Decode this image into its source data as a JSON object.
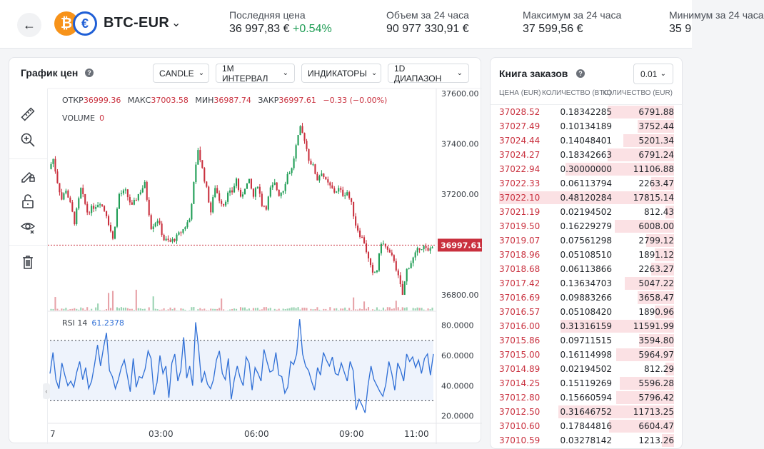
{
  "header": {
    "back_icon": "arrow-left-icon",
    "base_coin_symbol": "₿",
    "quote_coin_symbol": "€",
    "pair": "BTC-EUR",
    "stats": [
      {
        "label": "Последняя цена",
        "value": "36 997,83 €",
        "change": "+0.54%"
      },
      {
        "label": "Объем за 24 часа",
        "value": "90 977 330,91 €"
      },
      {
        "label": "Максимум за 24 часа",
        "value": "37 599,56 €"
      },
      {
        "label": "Минимум за 24 часа",
        "value": "35 9"
      }
    ]
  },
  "chart": {
    "title": "График цен",
    "dropdowns": {
      "type": "CANDLE",
      "interval": "1М ИНТЕРВАЛ",
      "indicators": "ИНДИКАТОРЫ",
      "range": "1D ДИАПАЗОН"
    },
    "ohlc": {
      "open_label": "ОТКР",
      "open": "36999.36",
      "high_label": "МАКС",
      "high": "37003.58",
      "low_label": "МИН",
      "low": "36987.74",
      "close_label": "ЗАКР",
      "close": "36997.61",
      "change": "−0.33 (−0.00%)"
    },
    "volume_label": "VOLUME",
    "volume_value": "0",
    "rsi_label": "RSI 14",
    "rsi_value": "61.2378",
    "current_price_tag": "36997.61",
    "tools": [
      "ruler-icon",
      "zoom-in-icon",
      "pencil-lock-icon",
      "lock-open-icon",
      "eye-icon",
      "trash-icon"
    ]
  },
  "chart_data": [
    {
      "type": "candlestick",
      "x_ticks": [
        "7",
        "03:00",
        "06:00",
        "09:00",
        "11:00"
      ],
      "y_ticks": [
        "37600.00",
        "37400.00",
        "37200.00",
        "36800.00"
      ],
      "ylim": [
        36735,
        37620
      ],
      "current_price": 36997.61,
      "close_path": [
        [
          0,
          37300
        ],
        [
          2,
          37340
        ],
        [
          4,
          37250
        ],
        [
          6,
          37180
        ],
        [
          8,
          37220
        ],
        [
          10,
          37160
        ],
        [
          12,
          37090
        ],
        [
          15,
          37220
        ],
        [
          18,
          37130
        ],
        [
          21,
          37150
        ],
        [
          24,
          37170
        ],
        [
          27,
          37120
        ],
        [
          30,
          37020
        ],
        [
          33,
          37200
        ],
        [
          36,
          37210
        ],
        [
          39,
          37150
        ],
        [
          42,
          37200
        ],
        [
          45,
          37240
        ],
        [
          48,
          37070
        ],
        [
          51,
          37100
        ],
        [
          54,
          37020
        ],
        [
          57,
          37010
        ],
        [
          60,
          37030
        ],
        [
          63,
          37060
        ],
        [
          66,
          37100
        ],
        [
          70,
          37380
        ],
        [
          72,
          37300
        ],
        [
          74,
          37220
        ],
        [
          76,
          37130
        ],
        [
          78,
          37230
        ],
        [
          80,
          37180
        ],
        [
          82,
          37160
        ],
        [
          84,
          37200
        ],
        [
          86,
          37210
        ],
        [
          88,
          37260
        ],
        [
          90,
          37180
        ],
        [
          92,
          37230
        ],
        [
          94,
          37250
        ],
        [
          96,
          37190
        ],
        [
          98,
          37240
        ],
        [
          100,
          37160
        ],
        [
          102,
          37150
        ],
        [
          104,
          37220
        ],
        [
          106,
          37240
        ],
        [
          108,
          37200
        ],
        [
          110,
          37220
        ],
        [
          112,
          37280
        ],
        [
          114,
          37300
        ],
        [
          116,
          37390
        ],
        [
          118,
          37460
        ],
        [
          120,
          37420
        ],
        [
          122,
          37340
        ],
        [
          124,
          37310
        ],
        [
          126,
          37260
        ],
        [
          128,
          37290
        ],
        [
          130,
          37250
        ],
        [
          132,
          37230
        ],
        [
          134,
          37210
        ],
        [
          136,
          37220
        ],
        [
          138,
          37200
        ],
        [
          140,
          37210
        ],
        [
          142,
          37160
        ],
        [
          144,
          37080
        ],
        [
          146,
          37040
        ],
        [
          148,
          37010
        ],
        [
          150,
          36940
        ],
        [
          152,
          36880
        ],
        [
          154,
          36900
        ],
        [
          156,
          37010
        ],
        [
          158,
          36990
        ],
        [
          160,
          36960
        ],
        [
          162,
          36940
        ],
        [
          164,
          36870
        ],
        [
          166,
          36800
        ],
        [
          168,
          36900
        ],
        [
          170,
          36930
        ],
        [
          172,
          36960
        ],
        [
          174,
          36990
        ],
        [
          176,
          36990
        ],
        [
          178,
          36970
        ],
        [
          180,
          36998
        ]
      ]
    },
    {
      "type": "bar",
      "name": "VOLUME",
      "note_source": "volume bars along bottom of price pane"
    },
    {
      "type": "line",
      "name": "RSI 14",
      "y_ticks": [
        "80.0000",
        "60.0000",
        "40.0000",
        "20.0000"
      ],
      "ylim": [
        16,
        86
      ],
      "bands": [
        70,
        30
      ],
      "values": [
        48,
        62,
        44,
        38,
        55,
        47,
        40,
        43,
        39,
        49,
        56,
        44,
        52,
        38,
        43,
        54,
        67,
        53,
        65,
        75,
        50,
        46,
        38,
        44,
        52,
        57,
        47,
        36,
        58,
        39,
        46,
        45,
        51,
        63,
        58,
        34,
        42,
        60,
        48,
        53,
        32,
        55,
        61,
        43,
        50,
        72,
        45,
        53,
        40,
        82,
        65,
        42,
        49,
        41,
        38,
        44,
        57,
        63,
        48,
        44,
        58,
        31,
        44,
        53,
        45,
        40,
        59,
        55,
        37,
        52,
        48,
        43,
        64,
        56,
        49,
        50,
        62,
        47,
        46,
        35,
        39,
        56,
        54,
        61,
        84,
        61,
        53,
        50,
        43,
        37,
        52,
        47,
        62,
        57,
        53,
        59,
        48,
        47,
        55,
        49,
        43,
        56,
        50,
        24,
        31,
        27,
        22,
        40,
        53,
        44,
        40,
        36,
        33,
        41,
        56,
        48,
        37,
        55,
        50,
        43,
        61,
        56,
        59,
        52,
        57,
        48,
        58,
        61,
        47,
        61
      ]
    }
  ],
  "order_book": {
    "title": "Книга заказов",
    "precision": "0.01",
    "columns": [
      "ЦЕНА (EUR)",
      "КОЛИЧЕСТВО (BTC)",
      "КОЛИЧЕСТВО (EUR)"
    ],
    "rows": [
      {
        "price": "37028.52",
        "qty": "0.18342285",
        "total": "6791.88",
        "depth": 0.38
      },
      {
        "price": "37027.49",
        "qty": "0.10134189",
        "total": "3752.44",
        "depth": 0.21
      },
      {
        "price": "37024.44",
        "qty": "0.14048401",
        "total": "5201.34",
        "depth": 0.29
      },
      {
        "price": "37024.27",
        "qty": "0.18342663",
        "total": "6791.24",
        "depth": 0.38
      },
      {
        "price": "37022.94",
        "qty": "0.30000000",
        "total": "11106.88",
        "depth": 0.62
      },
      {
        "price": "37022.33",
        "qty": "0.06113794",
        "total": "2263.47",
        "depth": 0.13
      },
      {
        "price": "37022.10",
        "qty": "0.48120284",
        "total": "17815.14",
        "depth": 1.0
      },
      {
        "price": "37021.19",
        "qty": "0.02194502",
        "total": "812.43",
        "depth": 0.05
      },
      {
        "price": "37019.50",
        "qty": "0.16229279",
        "total": "6008.00",
        "depth": 0.34
      },
      {
        "price": "37019.07",
        "qty": "0.07561298",
        "total": "2799.12",
        "depth": 0.16
      },
      {
        "price": "37018.96",
        "qty": "0.05108510",
        "total": "1891.12",
        "depth": 0.11
      },
      {
        "price": "37018.68",
        "qty": "0.06113866",
        "total": "2263.27",
        "depth": 0.13
      },
      {
        "price": "37017.42",
        "qty": "0.13634703",
        "total": "5047.22",
        "depth": 0.28
      },
      {
        "price": "37016.69",
        "qty": "0.09883266",
        "total": "3658.47",
        "depth": 0.21
      },
      {
        "price": "37016.57",
        "qty": "0.05108420",
        "total": "1890.96",
        "depth": 0.11
      },
      {
        "price": "37016.00",
        "qty": "0.31316159",
        "total": "11591.99",
        "depth": 0.65
      },
      {
        "price": "37015.86",
        "qty": "0.09711515",
        "total": "3594.80",
        "depth": 0.2
      },
      {
        "price": "37015.00",
        "qty": "0.16114998",
        "total": "5964.97",
        "depth": 0.33
      },
      {
        "price": "37014.89",
        "qty": "0.02194502",
        "total": "812.29",
        "depth": 0.05
      },
      {
        "price": "37014.25",
        "qty": "0.15119269",
        "total": "5596.28",
        "depth": 0.31
      },
      {
        "price": "37012.80",
        "qty": "0.15660594",
        "total": "5796.42",
        "depth": 0.33
      },
      {
        "price": "37012.50",
        "qty": "0.31646752",
        "total": "11713.25",
        "depth": 0.66
      },
      {
        "price": "37010.60",
        "qty": "0.17844816",
        "total": "6604.47",
        "depth": 0.37
      },
      {
        "price": "37010.59",
        "qty": "0.03278142",
        "total": "1213.26",
        "depth": 0.07
      }
    ]
  },
  "colors": {
    "up": "#1f9d55",
    "down": "#c9303e",
    "rsi_line": "#2f6fd6",
    "rsi_band_fill": "#eef3fc",
    "ask_depth": "#fbe1e4"
  }
}
